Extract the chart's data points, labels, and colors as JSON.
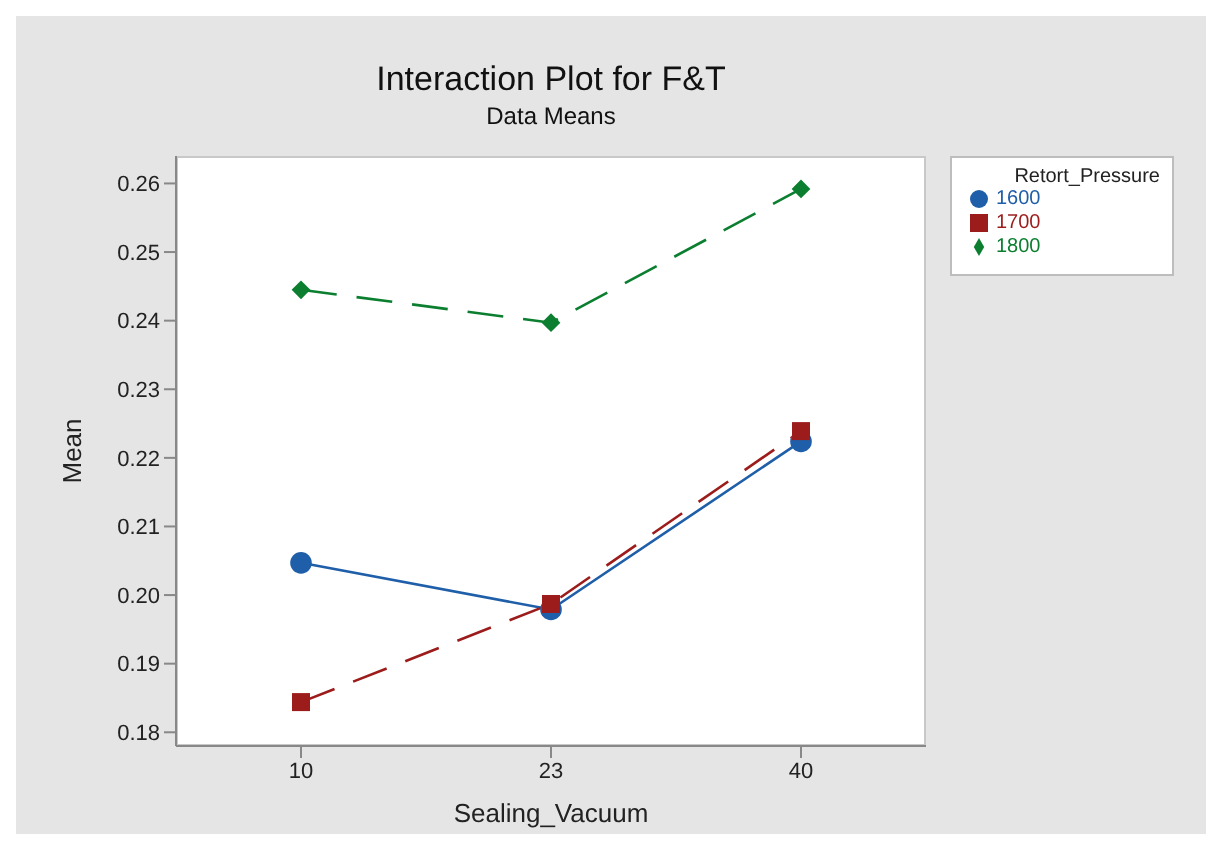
{
  "chart_data": {
    "type": "line",
    "title": "Interaction Plot for F&T",
    "subtitle": "Data Means",
    "xlabel": "Sealing_Vacuum",
    "ylabel": "Mean",
    "legend_title": "Retort_Pressure",
    "categories": [
      "10",
      "23",
      "40"
    ],
    "series": [
      {
        "name": "1600",
        "color": "#1f5ea8",
        "values": [
          0.2047,
          0.1979,
          0.2224
        ],
        "marker": "circle",
        "line_style": "solid"
      },
      {
        "name": "1700",
        "color": "#9c1c1c",
        "values": [
          0.1844,
          0.1987,
          0.2239
        ],
        "marker": "square",
        "line_style": "dashed"
      },
      {
        "name": "1800",
        "color": "#0b7f2f",
        "values": [
          0.2445,
          0.2397,
          0.2592
        ],
        "marker": "diamond",
        "line_style": "dashed"
      }
    ],
    "ylim": [
      0.178,
      0.264
    ],
    "yticks": [
      0.18,
      0.19,
      {
        "value": 0.2,
        "label": "0.20"
      },
      0.21,
      0.22,
      0.23,
      0.24,
      0.25,
      0.26
    ],
    "grid": false,
    "legend": "top right"
  }
}
